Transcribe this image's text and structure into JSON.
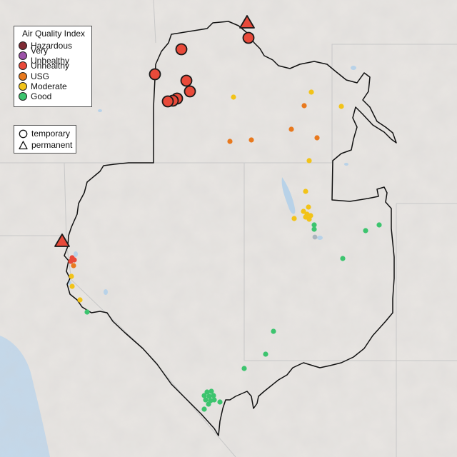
{
  "legend": {
    "title": "Air Quality Index",
    "categories": [
      {
        "label": "Hazardous",
        "color": "#7e2b34"
      },
      {
        "label": "Very Unhealthy",
        "color": "#9b52a8"
      },
      {
        "label": "Unhealthy",
        "color": "#e84a3a"
      },
      {
        "label": "USG",
        "color": "#e8791e"
      },
      {
        "label": "Moderate",
        "color": "#f2c318"
      },
      {
        "label": "Good",
        "color": "#3cc46e"
      }
    ]
  },
  "monitor_types": {
    "temporary": "temporary",
    "permanent": "permanent"
  },
  "colors": {
    "land": "#e7e4e1",
    "water": "#b8d2e8",
    "ocean": "#c4d8ea",
    "boundary": "#111111",
    "state_line": "#c8c8c8"
  }
}
